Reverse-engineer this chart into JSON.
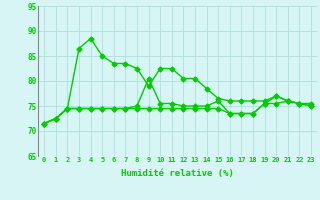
{
  "x": [
    0,
    1,
    2,
    3,
    4,
    5,
    6,
    7,
    8,
    9,
    10,
    11,
    12,
    13,
    14,
    15,
    16,
    17,
    18,
    19,
    20,
    21,
    22,
    23
  ],
  "line1": [
    71.5,
    72.5,
    74.5,
    86.5,
    88.5,
    85.0,
    83.5,
    83.5,
    82.5,
    79.0,
    82.5,
    82.5,
    80.5,
    80.5,
    78.5,
    76.5,
    76.0,
    76.0,
    76.0,
    76.0,
    77.0,
    76.0,
    75.5,
    75.5
  ],
  "line2": [
    71.5,
    72.5,
    74.5,
    74.5,
    74.5,
    74.5,
    74.5,
    74.5,
    75.0,
    80.5,
    75.5,
    75.5,
    75.0,
    75.0,
    75.0,
    76.0,
    73.5,
    73.5,
    73.5,
    75.5,
    77.0,
    76.0,
    75.5,
    75.0
  ],
  "line3": [
    71.5,
    72.5,
    74.5,
    74.5,
    74.5,
    74.5,
    74.5,
    74.5,
    74.5,
    74.5,
    74.5,
    74.5,
    74.5,
    74.5,
    74.5,
    74.5,
    73.5,
    73.5,
    73.5,
    75.5,
    75.5,
    76.0,
    75.5,
    75.0
  ],
  "xlim": [
    -0.5,
    23.5
  ],
  "ylim": [
    65,
    95
  ],
  "yticks": [
    65,
    70,
    75,
    80,
    85,
    90,
    95
  ],
  "xticks": [
    0,
    1,
    2,
    3,
    4,
    5,
    6,
    7,
    8,
    9,
    10,
    11,
    12,
    13,
    14,
    15,
    16,
    17,
    18,
    19,
    20,
    21,
    22,
    23
  ],
  "xlabel": "Humidité relative (%)",
  "line_color": "#00cc00",
  "bg_color": "#d8f5f5",
  "grid_color": "#b0dede",
  "marker": "D",
  "marker_size": 2.5,
  "linewidth": 1.0
}
